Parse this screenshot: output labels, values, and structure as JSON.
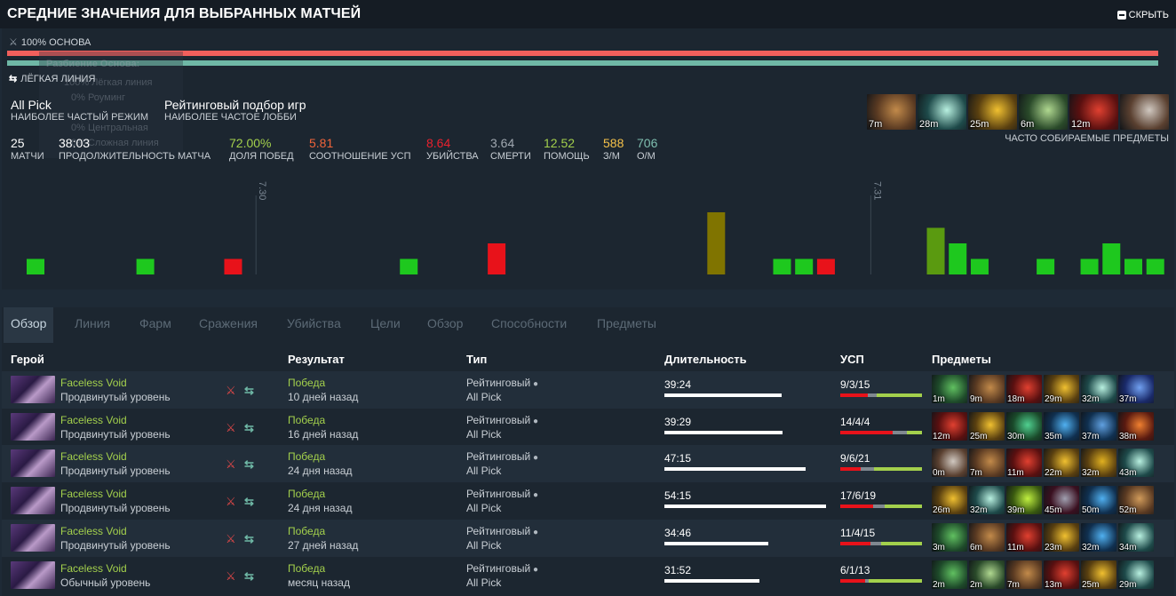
{
  "header": {
    "title": "СРЕДНИЕ ЗНАЧЕНИЯ ДЛЯ ВЫБРАННЫХ МАТЧЕЙ",
    "hide_label": "СКРЫТЬ"
  },
  "summary": {
    "role_label": "100% ОСНОВА",
    "role_fraction": 1.0,
    "breakdown_title": "Разбиение Основа:",
    "breakdown": [
      "100% Лёгкая линия",
      "0% Роуминг",
      "0% Центральная",
      "0% Сложная линия"
    ],
    "lane_label": "ЛЁГКАЯ ЛИНИЯ",
    "mode_value": "All Pick",
    "mode_label": "НАИБОЛЕЕ ЧАСТЫЙ РЕЖИМ",
    "lobby_value": "Рейтинговый подбор игр",
    "lobby_label": "НАИБОЛЕЕ ЧАСТОЕ ЛОББИ",
    "stats": [
      {
        "value": "25",
        "label": "МАТЧИ",
        "color": "#ffffff"
      },
      {
        "value": "38:03",
        "label": "ПРОДОЛЖИТЕЛЬНОСТЬ МАТЧА",
        "color": "#ffffff"
      },
      {
        "value": "72.00%",
        "label": "ДОЛЯ ПОБЕД",
        "color": "#a3d04c"
      },
      {
        "value": "5.81",
        "label": "СООТНОШЕНИЕ УСП",
        "color": "#f0643a"
      },
      {
        "value": "8.64",
        "label": "УБИЙСТВА",
        "color": "#e8212e"
      },
      {
        "value": "3.64",
        "label": "СМЕРТИ",
        "color": "#a0a8b0"
      },
      {
        "value": "12.52",
        "label": "ПОМОЩЬ",
        "color": "#a3d04c"
      },
      {
        "value": "588",
        "label": "З/М",
        "color": "#f6c24a"
      },
      {
        "value": "706",
        "label": "О/М",
        "color": "#7fbfb0"
      }
    ],
    "items": [
      {
        "icon": "boots-item-icon",
        "time": "7m",
        "c1": "#5a3a22",
        "c2": "#c28a4a"
      },
      {
        "icon": "magic-wand-item-icon",
        "time": "28m",
        "c1": "#1e4a4a",
        "c2": "#b8f0e0"
      },
      {
        "icon": "helm-item-icon",
        "time": "25m",
        "c1": "#5a4010",
        "c2": "#f0c030"
      },
      {
        "icon": "staff-item-icon",
        "time": "6m",
        "c1": "#2a4a2a",
        "c2": "#b0d890"
      },
      {
        "icon": "armor-item-icon",
        "time": "12m",
        "c1": "#5a1010",
        "c2": "#e04030"
      },
      {
        "icon": "axe-item-icon",
        "time": "",
        "c1": "#5a4030",
        "c2": "#d0c8c0"
      }
    ],
    "items_label": "ЧАСТО СОБИРАЕМЫЕ ПРЕДМЕТЫ"
  },
  "chart_data": {
    "type": "bar",
    "title": "",
    "xlabel": "",
    "ylabel": "",
    "markers": [
      {
        "label": "7.30",
        "index": 10
      },
      {
        "label": "7.31",
        "index": 38
      }
    ],
    "values": [
      1,
      0,
      0,
      0,
      0,
      1,
      0,
      0,
      0,
      1,
      0,
      0,
      0,
      0,
      0,
      0,
      0,
      1,
      0,
      0,
      0,
      2,
      0,
      0,
      0,
      0,
      0,
      0,
      0,
      0,
      0,
      4,
      0,
      0,
      1,
      1,
      1,
      0,
      0,
      0,
      0,
      3,
      2,
      1,
      0,
      0,
      1,
      0,
      1,
      2,
      1,
      1
    ],
    "results": [
      "win",
      "none",
      "none",
      "none",
      "none",
      "win",
      "none",
      "none",
      "none",
      "loss",
      "none",
      "none",
      "none",
      "none",
      "none",
      "none",
      "none",
      "win",
      "none",
      "none",
      "none",
      "loss",
      "none",
      "none",
      "none",
      "none",
      "none",
      "none",
      "none",
      "none",
      "none",
      "olive",
      "none",
      "none",
      "win",
      "win",
      "loss",
      "none",
      "none",
      "none",
      "none",
      "olivegreen",
      "win",
      "win",
      "none",
      "none",
      "win",
      "none",
      "win",
      "win",
      "win",
      "win"
    ]
  },
  "tabs": [
    "Обзор",
    "Линия",
    "Фарм",
    "Сражения",
    "Убийства",
    "Цели",
    "Обзор",
    "Способности",
    "Предметы"
  ],
  "table": {
    "headers": [
      "Герой",
      "Результат",
      "Тип",
      "Длительность",
      "УСП",
      "Предметы"
    ],
    "rows": [
      {
        "hero": "Faceless Void",
        "skill": "Продвинутый уровень",
        "result": "Победа",
        "ago": "10 дней назад",
        "type": "Рейтинговый",
        "mode": "All Pick",
        "duration": "39:24",
        "dur_min": 39.4,
        "kda": "9/3/15",
        "k": 9,
        "d": 3,
        "a": 15,
        "items": [
          {
            "time": "1m",
            "icon": "bracer-item-icon",
            "c1": "#1e4a2a",
            "c2": "#60c060"
          },
          {
            "time": "9m",
            "icon": "boots-item-icon",
            "c1": "#5a3a22",
            "c2": "#c28a4a"
          },
          {
            "time": "18m",
            "icon": "armor-item-icon",
            "c1": "#5a1010",
            "c2": "#e04030"
          },
          {
            "time": "29m",
            "icon": "helm-item-icon",
            "c1": "#5a4010",
            "c2": "#f0c030"
          },
          {
            "time": "32m",
            "icon": "magic-wand-item-icon",
            "c1": "#1e4a4a",
            "c2": "#b8f0e0"
          },
          {
            "time": "37m",
            "icon": "blade-item-icon",
            "c1": "#1a2a6a",
            "c2": "#70a0f0"
          }
        ]
      },
      {
        "hero": "Faceless Void",
        "skill": "Продвинутый уровень",
        "result": "Победа",
        "ago": "16 дней назад",
        "type": "Рейтинговый",
        "mode": "All Pick",
        "duration": "39:29",
        "dur_min": 39.5,
        "kda": "14/4/4",
        "k": 14,
        "d": 4,
        "a": 4,
        "items": [
          {
            "time": "12m",
            "icon": "armor-item-icon",
            "c1": "#5a1010",
            "c2": "#e04030"
          },
          {
            "time": "25m",
            "icon": "helm-item-icon",
            "c1": "#5a4010",
            "c2": "#f0c030"
          },
          {
            "time": "30m",
            "icon": "butterfly-item-icon",
            "c1": "#1a4a2a",
            "c2": "#50d090"
          },
          {
            "time": "35m",
            "icon": "orb-item-icon",
            "c1": "#103050",
            "c2": "#50b0f0"
          },
          {
            "time": "37m",
            "icon": "orb-item-icon",
            "c1": "#103050",
            "c2": "#60a0e0"
          },
          {
            "time": "38m",
            "icon": "fire-item-icon",
            "c1": "#5a1a10",
            "c2": "#f08030"
          }
        ]
      },
      {
        "hero": "Faceless Void",
        "skill": "Продвинутый уровень",
        "result": "Победа",
        "ago": "24 дня назад",
        "type": "Рейтинговый",
        "mode": "All Pick",
        "duration": "47:15",
        "dur_min": 47.25,
        "kda": "9/6/21",
        "k": 9,
        "d": 6,
        "a": 21,
        "items": [
          {
            "time": "0m",
            "icon": "axe-item-icon",
            "c1": "#5a4030",
            "c2": "#d0c8c0"
          },
          {
            "time": "7m",
            "icon": "boots-item-icon",
            "c1": "#5a3a22",
            "c2": "#c28a4a"
          },
          {
            "time": "11m",
            "icon": "armor-item-icon",
            "c1": "#5a1010",
            "c2": "#e04030"
          },
          {
            "time": "22m",
            "icon": "helm-item-icon",
            "c1": "#5a4010",
            "c2": "#f0c030"
          },
          {
            "time": "32m",
            "icon": "helm-item-icon",
            "c1": "#5a4010",
            "c2": "#e0b020"
          },
          {
            "time": "43m",
            "icon": "magic-wand-item-icon",
            "c1": "#1e4a4a",
            "c2": "#b8f0e0"
          }
        ]
      },
      {
        "hero": "Faceless Void",
        "skill": "Продвинутый уровень",
        "result": "Победа",
        "ago": "24 дня назад",
        "type": "Рейтинговый",
        "mode": "All Pick",
        "duration": "54:15",
        "dur_min": 54.25,
        "kda": "17/6/19",
        "k": 17,
        "d": 6,
        "a": 19,
        "items": [
          {
            "time": "26m",
            "icon": "helm-item-icon",
            "c1": "#5a4010",
            "c2": "#f0c030"
          },
          {
            "time": "32m",
            "icon": "magic-wand-item-icon",
            "c1": "#1e4a4a",
            "c2": "#b8f0e0"
          },
          {
            "time": "39m",
            "icon": "staff-item-icon",
            "c1": "#3a5a10",
            "c2": "#c0f040"
          },
          {
            "time": "45m",
            "icon": "claw-item-icon",
            "c1": "#3a1020",
            "c2": "#a0a0b0"
          },
          {
            "time": "50m",
            "icon": "orb-item-icon",
            "c1": "#103050",
            "c2": "#50b0f0"
          },
          {
            "time": "52m",
            "icon": "boots-item-icon",
            "c1": "#5a3a22",
            "c2": "#d09a5a"
          }
        ]
      },
      {
        "hero": "Faceless Void",
        "skill": "Продвинутый уровень",
        "result": "Победа",
        "ago": "27 дней назад",
        "type": "Рейтинговый",
        "mode": "All Pick",
        "duration": "34:46",
        "dur_min": 34.77,
        "kda": "11/4/15",
        "k": 11,
        "d": 4,
        "a": 15,
        "items": [
          {
            "time": "3m",
            "icon": "bracer-item-icon",
            "c1": "#1e4a2a",
            "c2": "#60c060"
          },
          {
            "time": "6m",
            "icon": "boots-item-icon",
            "c1": "#5a3a22",
            "c2": "#c28a4a"
          },
          {
            "time": "11m",
            "icon": "armor-item-icon",
            "c1": "#5a1010",
            "c2": "#e04030"
          },
          {
            "time": "23m",
            "icon": "helm-item-icon",
            "c1": "#5a4010",
            "c2": "#f0c030"
          },
          {
            "time": "32m",
            "icon": "orb-item-icon",
            "c1": "#103050",
            "c2": "#50b0f0"
          },
          {
            "time": "34m",
            "icon": "magic-wand-item-icon",
            "c1": "#1e4a4a",
            "c2": "#b8f0e0"
          }
        ]
      },
      {
        "hero": "Faceless Void",
        "skill": "Обычный уровень",
        "result": "Победа",
        "ago": "месяц назад",
        "type": "Рейтинговый",
        "mode": "All Pick",
        "duration": "31:52",
        "dur_min": 31.87,
        "kda": "6/1/13",
        "k": 6,
        "d": 1,
        "a": 13,
        "items": [
          {
            "time": "2m",
            "icon": "bracer-item-icon",
            "c1": "#1e4a2a",
            "c2": "#60c060"
          },
          {
            "time": "2m",
            "icon": "staff-item-icon",
            "c1": "#2a4a2a",
            "c2": "#b0d890"
          },
          {
            "time": "7m",
            "icon": "boots-item-icon",
            "c1": "#5a3a22",
            "c2": "#c28a4a"
          },
          {
            "time": "13m",
            "icon": "armor-item-icon",
            "c1": "#5a1010",
            "c2": "#e04030"
          },
          {
            "time": "25m",
            "icon": "helm-item-icon",
            "c1": "#5a4010",
            "c2": "#f0c030"
          },
          {
            "time": "29m",
            "icon": "magic-wand-item-icon",
            "c1": "#1e4a4a",
            "c2": "#b8f0e0"
          }
        ]
      }
    ]
  },
  "colors": {
    "win": "#1ec81e",
    "loss": "#e8121a",
    "olive": "#807400",
    "olivegreen": "#5a9a10",
    "accent_green": "#a3d04c"
  }
}
